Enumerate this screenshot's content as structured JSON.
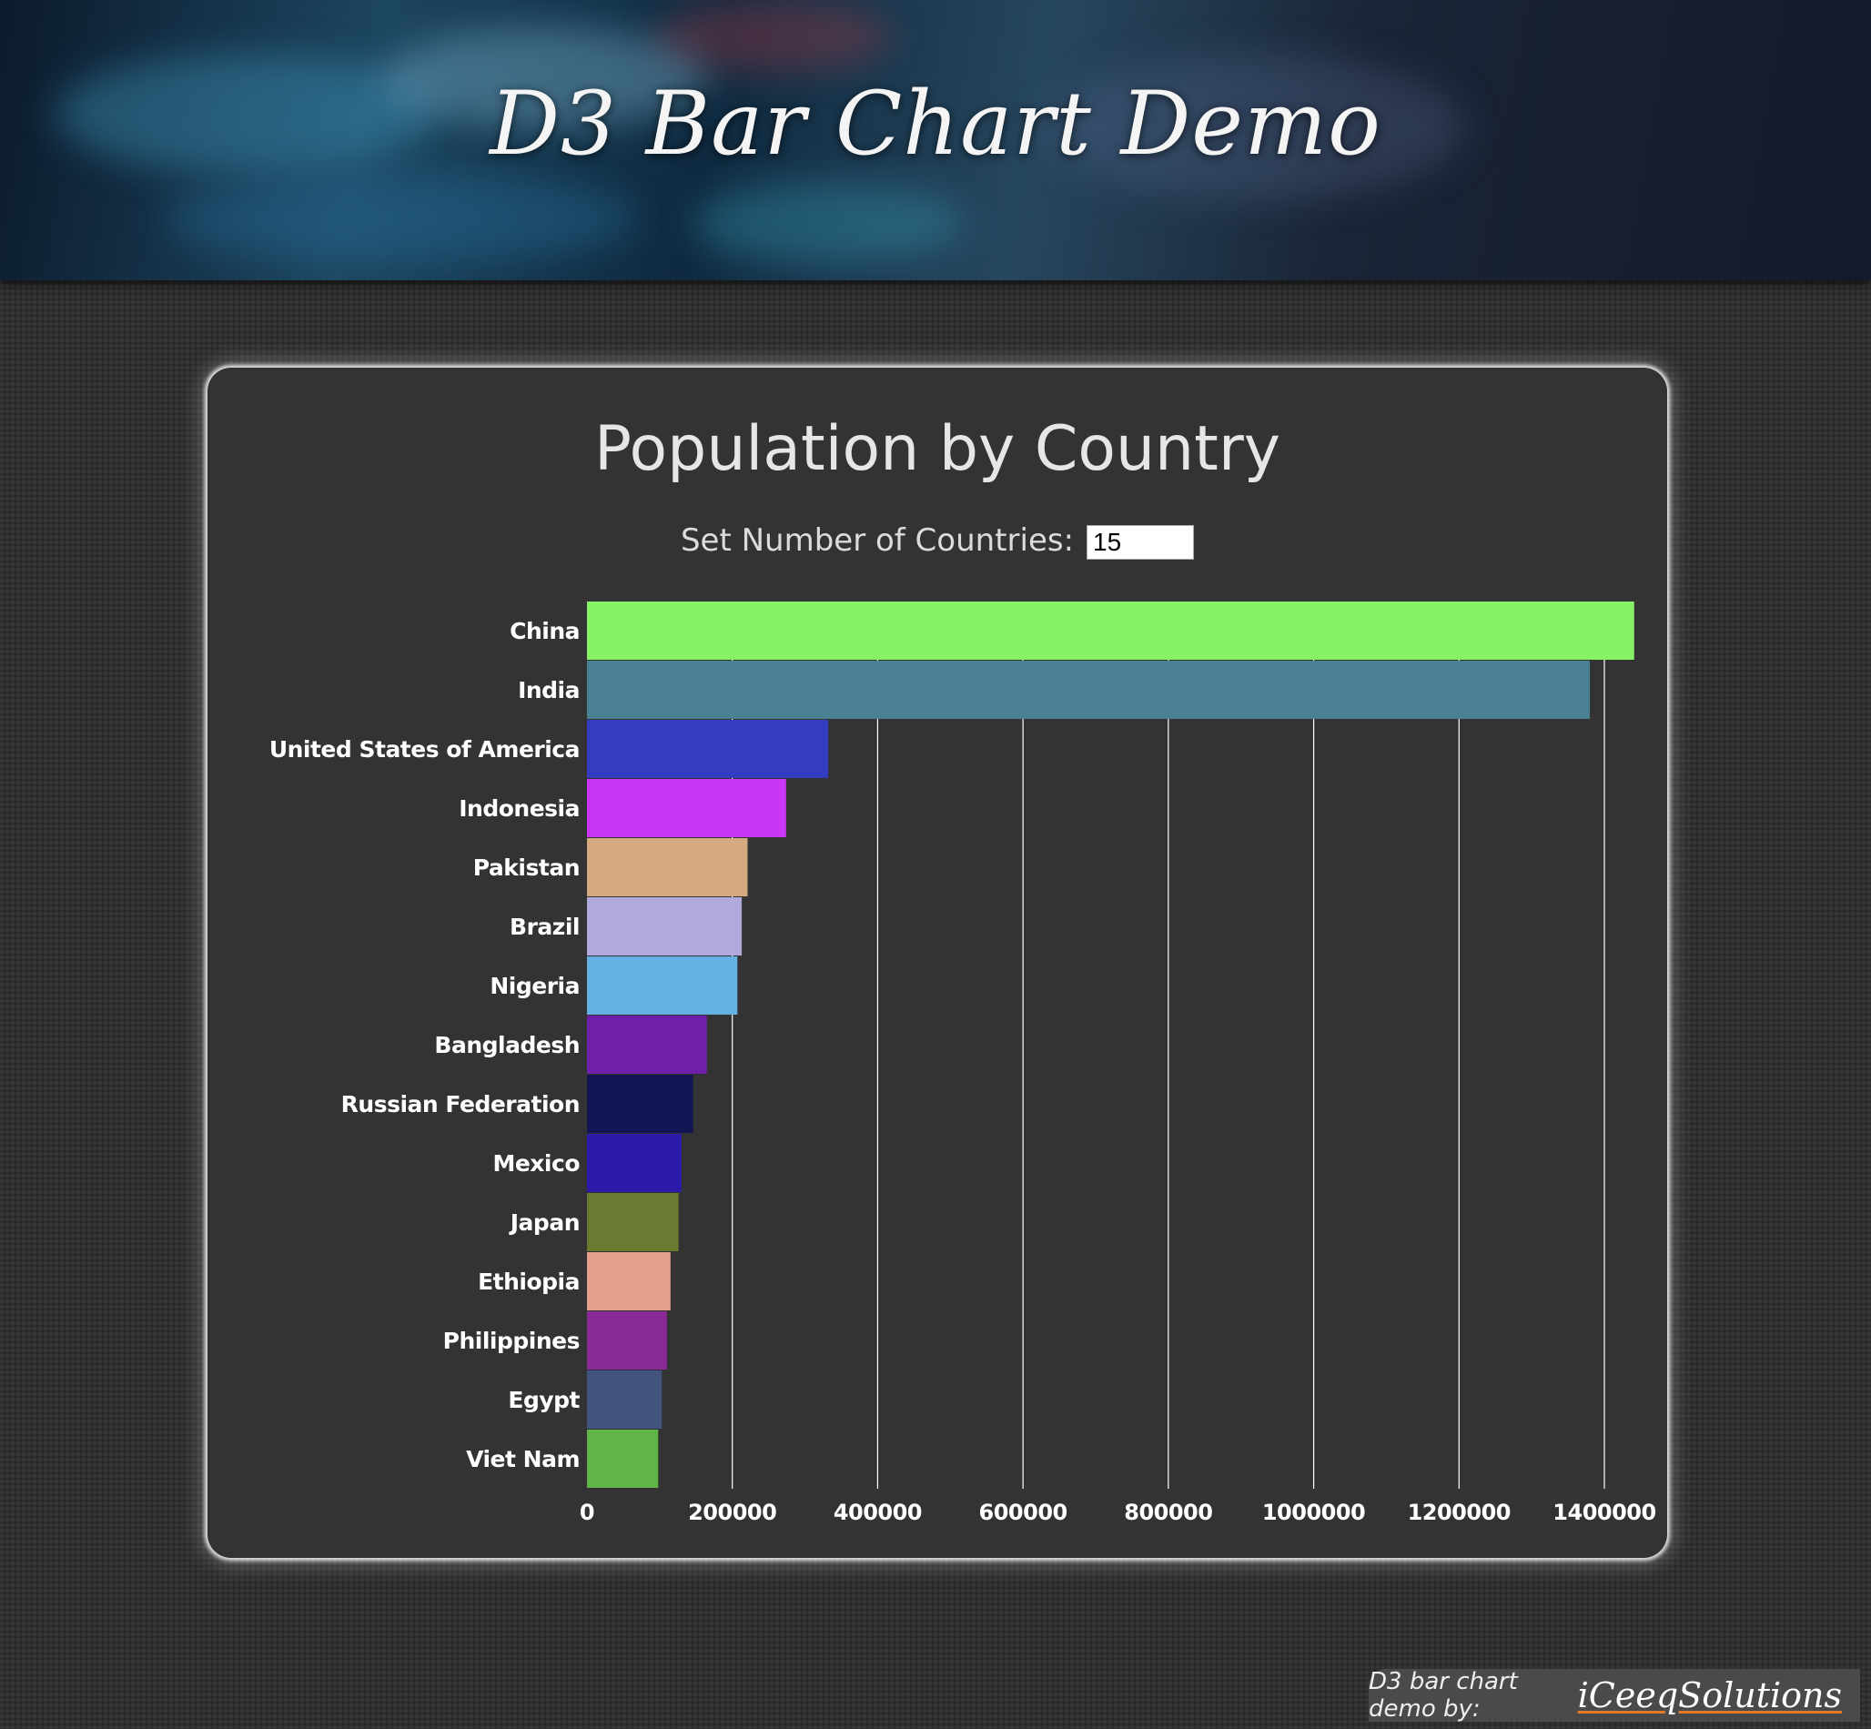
{
  "header": {
    "title": "D3 Bar Chart Demo"
  },
  "control": {
    "label": "Set Number of Countries:",
    "value": "15"
  },
  "footer": {
    "credit": "D3 bar chart demo by:",
    "brand": "iCeeqSolutions"
  },
  "chart_data": {
    "type": "bar",
    "orientation": "horizontal",
    "title": "Population by Country",
    "xlabel": "",
    "ylabel": "",
    "xlim": [
      0,
      1400000
    ],
    "x_ticks": [
      0,
      200000,
      400000,
      600000,
      800000,
      1000000,
      1200000,
      1400000
    ],
    "grid": true,
    "categories": [
      "China",
      "India",
      "United States of America",
      "Indonesia",
      "Pakistan",
      "Brazil",
      "Nigeria",
      "Bangladesh",
      "Russian Federation",
      "Mexico",
      "Japan",
      "Ethiopia",
      "Philippines",
      "Egypt",
      "Viet Nam"
    ],
    "values": [
      1441000,
      1380000,
      332000,
      274000,
      221000,
      213000,
      207000,
      165000,
      146000,
      130000,
      126000,
      115000,
      110000,
      103000,
      98000
    ],
    "colors": [
      "#88f266",
      "#4a8192",
      "#343cc0",
      "#c837f3",
      "#d6aa80",
      "#b1a8db",
      "#65b1e4",
      "#6e20a9",
      "#101553",
      "#2b1aa9",
      "#687b30",
      "#e19f8c",
      "#892996",
      "#43547e",
      "#61b548"
    ]
  }
}
